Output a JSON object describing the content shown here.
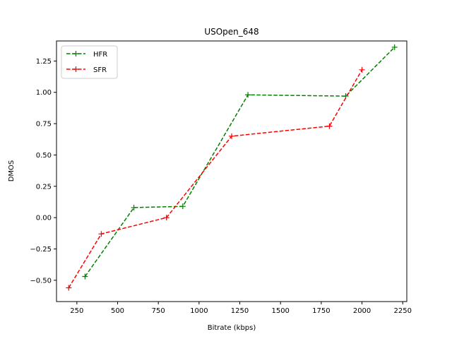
{
  "chart_data": {
    "type": "line",
    "title": "USOpen_648",
    "xlabel": "Bitrate (kbps)",
    "ylabel": "DMOS",
    "xlim": [
      125,
      2275
    ],
    "ylim": [
      -0.67,
      1.41
    ],
    "xticks": [
      250,
      500,
      750,
      1000,
      1250,
      1500,
      1750,
      2000,
      2250
    ],
    "yticks": [
      -0.5,
      -0.25,
      0.0,
      0.25,
      0.5,
      0.75,
      1.0,
      1.25
    ],
    "xtick_labels": [
      "250",
      "500",
      "750",
      "1000",
      "1250",
      "1500",
      "1750",
      "2000",
      "2250"
    ],
    "ytick_labels": [
      "−0.50",
      "−0.25",
      "0.00",
      "0.25",
      "0.50",
      "0.75",
      "1.00",
      "1.25"
    ],
    "grid": false,
    "legend_position": "upper-left",
    "series": [
      {
        "name": "HFR",
        "color": "#008000",
        "line_style": "dashed",
        "marker": "plus",
        "x": [
          300,
          600,
          900,
          1300,
          1900,
          2200
        ],
        "y": [
          -0.47,
          0.08,
          0.09,
          0.98,
          0.97,
          1.36
        ]
      },
      {
        "name": "SFR",
        "color": "#ff0000",
        "line_style": "dashed",
        "marker": "plus",
        "x": [
          200,
          400,
          800,
          1200,
          1800,
          2000
        ],
        "y": [
          -0.56,
          -0.13,
          0.0,
          0.65,
          0.73,
          1.18
        ]
      }
    ]
  }
}
